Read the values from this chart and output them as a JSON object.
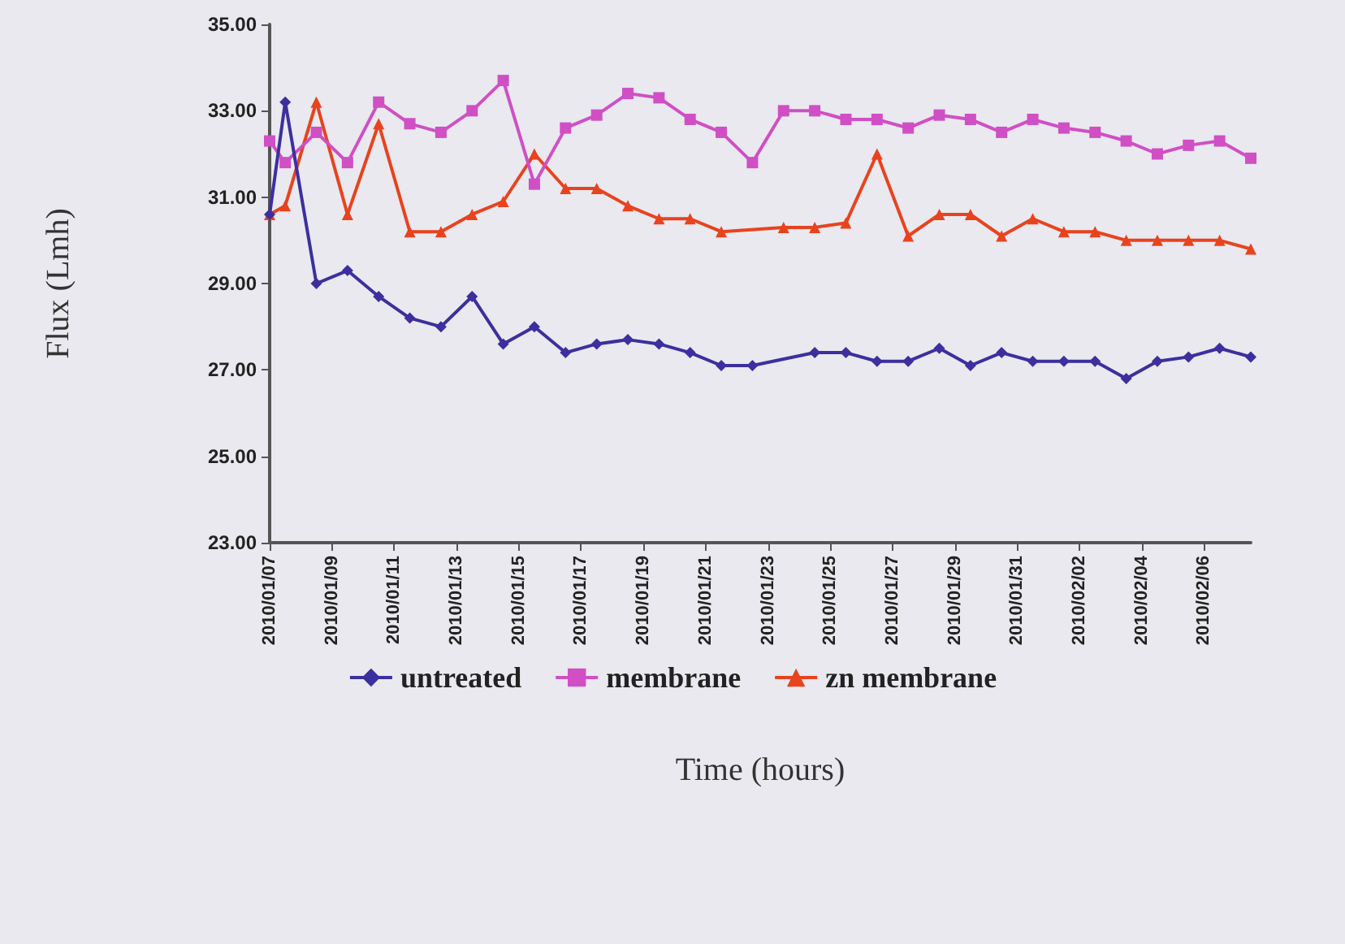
{
  "chart_data": {
    "type": "line",
    "xlabel": "Time (hours)",
    "ylabel": "Flux (Lmh)",
    "xlim": [
      "2010-01-07",
      "2010-02-07T12:00"
    ],
    "xticks": [
      {
        "value": "2010-01-07",
        "label": "2010/01/07"
      },
      {
        "value": "2010-01-09",
        "label": "2010/01/09"
      },
      {
        "value": "2010-01-11",
        "label": "2010/01/11"
      },
      {
        "value": "2010-01-13",
        "label": "2010/01/13"
      },
      {
        "value": "2010-01-15",
        "label": "2010/01/15"
      },
      {
        "value": "2010-01-17",
        "label": "2010/01/17"
      },
      {
        "value": "2010-01-19",
        "label": "2010/01/19"
      },
      {
        "value": "2010-01-21",
        "label": "2010/01/21"
      },
      {
        "value": "2010-01-23",
        "label": "2010/01/23"
      },
      {
        "value": "2010-01-25",
        "label": "2010/01/25"
      },
      {
        "value": "2010-01-27",
        "label": "2010/01/27"
      },
      {
        "value": "2010-01-29",
        "label": "2010/01/29"
      },
      {
        "value": "2010-01-31",
        "label": "2010/01/31"
      },
      {
        "value": "2010-02-02",
        "label": "2010/02/02"
      },
      {
        "value": "2010-02-04",
        "label": "2010/02/04"
      },
      {
        "value": "2010-02-06",
        "label": "2010/02/06"
      }
    ],
    "ylim": [
      23,
      35
    ],
    "yticks": [
      {
        "value": 23,
        "label": "23.00"
      },
      {
        "value": 25,
        "label": "25.00"
      },
      {
        "value": 27,
        "label": "27.00"
      },
      {
        "value": 29,
        "label": "29.00"
      },
      {
        "value": 31,
        "label": "31.00"
      },
      {
        "value": 33,
        "label": "33.00"
      },
      {
        "value": 35,
        "label": "35.00"
      }
    ],
    "grid": false,
    "legend": "bottom",
    "series": [
      {
        "name": "untreated",
        "color": "#3c2f9e",
        "marker": "diamond",
        "x": [
          "2010-01-07",
          "2010-01-07T12:00",
          "2010-01-08T12:00",
          "2010-01-09T12:00",
          "2010-01-10T12:00",
          "2010-01-11T12:00",
          "2010-01-12T12:00",
          "2010-01-13T12:00",
          "2010-01-14T12:00",
          "2010-01-15T12:00",
          "2010-01-16T12:00",
          "2010-01-17T12:00",
          "2010-01-18T12:00",
          "2010-01-19T12:00",
          "2010-01-20T12:00",
          "2010-01-21T12:00",
          "2010-01-22T12:00",
          "2010-01-24T12:00",
          "2010-01-25T12:00",
          "2010-01-26T12:00",
          "2010-01-27T12:00",
          "2010-01-28T12:00",
          "2010-01-29T12:00",
          "2010-01-30T12:00",
          "2010-01-31T12:00",
          "2010-02-01T12:00",
          "2010-02-02T12:00",
          "2010-02-03T12:00",
          "2010-02-04T12:00",
          "2010-02-05T12:00",
          "2010-02-06T12:00",
          "2010-02-07T12:00"
        ],
        "values": [
          30.6,
          33.2,
          29.0,
          29.3,
          28.7,
          28.2,
          28.0,
          28.7,
          27.6,
          28.0,
          27.4,
          27.6,
          27.7,
          27.6,
          27.4,
          27.1,
          27.1,
          27.4,
          27.4,
          27.2,
          27.2,
          27.5,
          27.1,
          27.4,
          27.2,
          27.2,
          27.2,
          26.8,
          27.2,
          27.3,
          27.5,
          27.3
        ]
      },
      {
        "name": "membrane",
        "color": "#d04fc4",
        "marker": "square",
        "x": [
          "2010-01-07",
          "2010-01-07T12:00",
          "2010-01-08T12:00",
          "2010-01-09T12:00",
          "2010-01-10T12:00",
          "2010-01-11T12:00",
          "2010-01-12T12:00",
          "2010-01-13T12:00",
          "2010-01-14T12:00",
          "2010-01-15T12:00",
          "2010-01-16T12:00",
          "2010-01-17T12:00",
          "2010-01-18T12:00",
          "2010-01-19T12:00",
          "2010-01-20T12:00",
          "2010-01-21T12:00",
          "2010-01-22T12:00",
          "2010-01-23T12:00",
          "2010-01-24T12:00",
          "2010-01-25T12:00",
          "2010-01-26T12:00",
          "2010-01-27T12:00",
          "2010-01-28T12:00",
          "2010-01-29T12:00",
          "2010-01-30T12:00",
          "2010-01-31T12:00",
          "2010-02-01T12:00",
          "2010-02-02T12:00",
          "2010-02-03T12:00",
          "2010-02-04T12:00",
          "2010-02-05T12:00",
          "2010-02-06T12:00",
          "2010-02-07T12:00"
        ],
        "values": [
          32.3,
          31.8,
          32.5,
          31.8,
          33.2,
          32.7,
          32.5,
          33.0,
          33.7,
          31.3,
          32.6,
          32.9,
          33.4,
          33.3,
          32.8,
          32.5,
          31.8,
          33.0,
          33.0,
          32.8,
          32.8,
          32.6,
          32.9,
          32.8,
          32.5,
          32.8,
          32.6,
          32.5,
          32.3,
          32.0,
          32.2,
          32.3,
          31.9
        ]
      },
      {
        "name": "zn membrane",
        "color": "#e8431e",
        "marker": "triangle",
        "x": [
          "2010-01-07",
          "2010-01-07T12:00",
          "2010-01-08T12:00",
          "2010-01-09T12:00",
          "2010-01-10T12:00",
          "2010-01-11T12:00",
          "2010-01-12T12:00",
          "2010-01-13T12:00",
          "2010-01-14T12:00",
          "2010-01-15T12:00",
          "2010-01-16T12:00",
          "2010-01-17T12:00",
          "2010-01-18T12:00",
          "2010-01-19T12:00",
          "2010-01-20T12:00",
          "2010-01-21T12:00",
          "2010-01-23T12:00",
          "2010-01-24T12:00",
          "2010-01-25T12:00",
          "2010-01-26T12:00",
          "2010-01-27T12:00",
          "2010-01-28T12:00",
          "2010-01-29T12:00",
          "2010-01-30T12:00",
          "2010-01-31T12:00",
          "2010-02-01T12:00",
          "2010-02-02T12:00",
          "2010-02-03T12:00",
          "2010-02-04T12:00",
          "2010-02-05T12:00",
          "2010-02-06T12:00",
          "2010-02-07T12:00"
        ],
        "values": [
          30.6,
          30.8,
          33.2,
          30.6,
          32.7,
          30.2,
          30.2,
          30.6,
          30.9,
          32.0,
          31.2,
          31.2,
          30.8,
          30.5,
          30.5,
          30.2,
          30.3,
          30.3,
          30.4,
          32.0,
          30.1,
          30.6,
          30.6,
          30.1,
          30.5,
          30.2,
          30.2,
          30.0,
          30.0,
          30.0,
          30.0,
          29.8
        ]
      }
    ]
  }
}
